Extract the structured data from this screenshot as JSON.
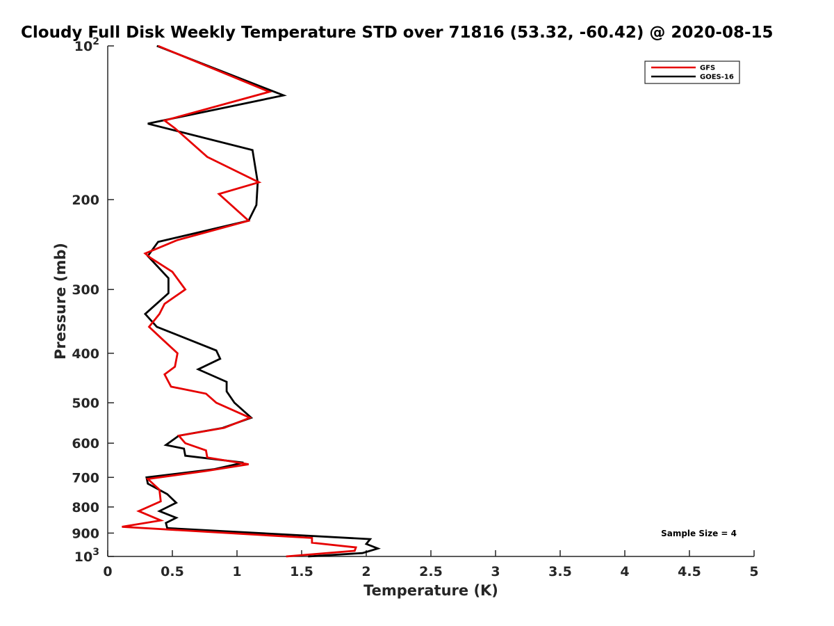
{
  "chart_data": {
    "type": "line",
    "title": "Cloudy Full Disk Weekly Temperature STD over 71816 (53.32, -60.42) @ 2020-08-15",
    "xlabel": "Temperature (K)",
    "ylabel": "Pressure (mb)",
    "xlim": [
      0,
      5
    ],
    "ylim": [
      100,
      1000
    ],
    "yscale": "log",
    "y_reversed": true,
    "grid": false,
    "legend_position": "top-right",
    "x_ticks": [
      "0",
      "0.5",
      "1",
      "1.5",
      "2",
      "2.5",
      "3",
      "3.5",
      "4",
      "4.5",
      "5"
    ],
    "x_tick_values": [
      0,
      0.5,
      1,
      1.5,
      2,
      2.5,
      3,
      3.5,
      4,
      4.5,
      5
    ],
    "y_ticks": [
      {
        "value": 100,
        "base": "10",
        "exp": "2"
      },
      {
        "value": 200,
        "label": "200"
      },
      {
        "value": 300,
        "label": "300"
      },
      {
        "value": 400,
        "label": "400"
      },
      {
        "value": 500,
        "label": "500"
      },
      {
        "value": 600,
        "label": "600"
      },
      {
        "value": 700,
        "label": "700"
      },
      {
        "value": 800,
        "label": "800"
      },
      {
        "value": 900,
        "label": "900"
      },
      {
        "value": 1000,
        "base": "10",
        "exp": "3"
      }
    ],
    "annotation": "Sample Size = 4",
    "series": [
      {
        "name": "GFS",
        "color": "#e60000",
        "x": [
          0.39,
          1.25,
          0.44,
          0.52,
          0.77,
          1.17,
          0.86,
          1.09,
          0.54,
          0.29,
          0.33,
          0.5,
          0.6,
          0.44,
          0.4,
          0.32,
          0.42,
          0.54,
          0.52,
          0.44,
          0.49,
          0.76,
          0.84,
          1.1,
          0.9,
          0.55,
          0.6,
          0.76,
          0.77,
          1.09,
          0.76,
          0.31,
          0.4,
          0.41,
          0.24,
          0.41,
          0.11,
          1.58,
          1.58,
          1.92,
          1.91,
          1.38
        ],
        "y": [
          100,
          123,
          140,
          145,
          165,
          185,
          195,
          220,
          240,
          255,
          260,
          277,
          300,
          320,
          335,
          355,
          375,
          400,
          425,
          440,
          465,
          480,
          500,
          535,
          560,
          580,
          600,
          620,
          640,
          660,
          680,
          705,
          740,
          780,
          815,
          850,
          875,
          920,
          940,
          960,
          975,
          1000
        ]
      },
      {
        "name": "GOES-16",
        "color": "#000000",
        "x": [
          0.38,
          1.36,
          0.31,
          1.12,
          1.16,
          1.15,
          1.09,
          0.39,
          0.31,
          0.47,
          0.47,
          0.29,
          0.38,
          0.84,
          0.87,
          0.7,
          0.92,
          0.92,
          0.98,
          1.11,
          0.89,
          0.55,
          0.45,
          0.59,
          0.6,
          1.05,
          0.82,
          0.3,
          0.31,
          0.46,
          0.53,
          0.4,
          0.53,
          0.45,
          0.46,
          2.03,
          2.0,
          2.09,
          1.97,
          1.55
        ],
        "y": [
          100,
          125,
          142,
          160,
          185,
          205,
          220,
          242,
          258,
          285,
          305,
          335,
          355,
          395,
          410,
          430,
          455,
          475,
          500,
          535,
          560,
          580,
          605,
          615,
          635,
          655,
          675,
          700,
          720,
          755,
          785,
          815,
          840,
          860,
          880,
          925,
          945,
          965,
          985,
          1000
        ]
      }
    ]
  }
}
